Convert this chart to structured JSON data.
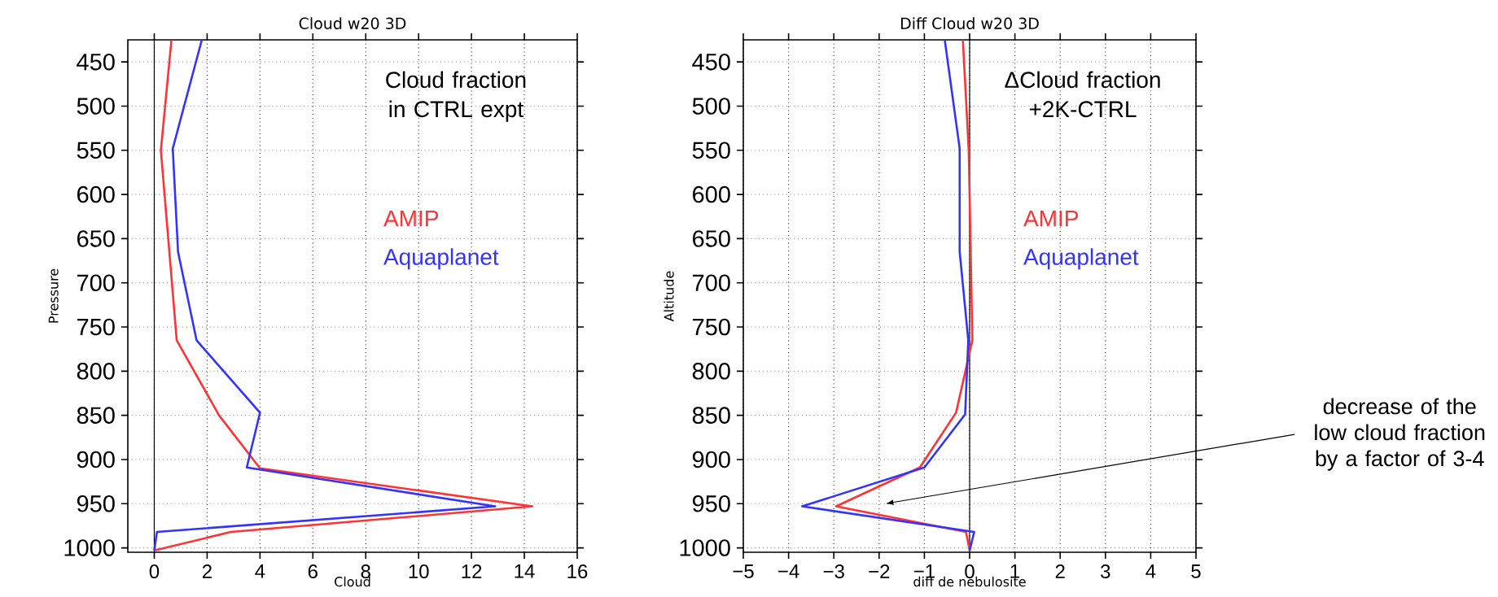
{
  "chart_data": [
    {
      "type": "line",
      "title": "Cloud w20 3D",
      "xlabel": "Cloud",
      "ylabel": "Pressure",
      "xlim": [
        -1,
        16
      ],
      "xticks": [
        0,
        2,
        4,
        6,
        8,
        10,
        12,
        14,
        16
      ],
      "ylim": [
        1005,
        425
      ],
      "yticks": [
        450,
        500,
        550,
        600,
        650,
        700,
        750,
        800,
        850,
        900,
        950,
        1000
      ],
      "grid": true,
      "legend": "right",
      "ref_lines": [
        {
          "axis": "x",
          "value": 0
        }
      ],
      "annotations": [
        "Cloud fraction in CTRL expt"
      ],
      "series": [
        {
          "name": "AMIP",
          "color": "#ff3333",
          "x": [
            0.65,
            0.25,
            0.85,
            2.45,
            4.0,
            14.3,
            2.9,
            0
          ],
          "values": [
            425,
            550,
            765,
            850,
            910,
            953,
            982,
            1003
          ]
        },
        {
          "name": "Aquaplanet",
          "color": "#3333ff",
          "x": [
            1.8,
            0.7,
            0.9,
            1.6,
            4.0,
            3.5,
            12.9,
            0.1,
            0
          ],
          "values": [
            425,
            548,
            665,
            765,
            847,
            909,
            953,
            982,
            1003
          ]
        }
      ]
    },
    {
      "type": "line",
      "title": "Diff Cloud w20 3D",
      "xlabel": "diff de nebulosite",
      "ylabel": "Altitude",
      "xlim": [
        -5,
        5
      ],
      "xticks": [
        {
          "value": -5,
          "label": "−5"
        },
        {
          "value": -4,
          "label": "−4"
        },
        {
          "value": -3,
          "label": "−3"
        },
        {
          "value": -2,
          "label": "−2"
        },
        {
          "value": -1,
          "label": "−1"
        },
        0,
        1,
        2,
        3,
        4,
        5
      ],
      "ylim": [
        1005,
        425
      ],
      "yticks": [
        450,
        500,
        550,
        600,
        650,
        700,
        750,
        800,
        850,
        900,
        950,
        1000
      ],
      "grid": true,
      "legend": "right",
      "ref_lines": [
        {
          "axis": "x",
          "value": 0
        }
      ],
      "annotations": [
        "ΔCloud fraction +2K-CTRL",
        "decrease of the low cloud fraction by a factor of 3-4"
      ],
      "series": [
        {
          "name": "AMIP",
          "color": "#ff3333",
          "x": [
            -0.15,
            -0.02,
            0.06,
            -0.3,
            -1.1,
            -2.95,
            -0.08,
            0
          ],
          "values": [
            425,
            550,
            765,
            847,
            909,
            953,
            982,
            1003
          ]
        },
        {
          "name": "Aquaplanet",
          "color": "#3333ff",
          "x": [
            -0.55,
            -0.22,
            -0.22,
            -0.03,
            -0.1,
            -1.0,
            -3.7,
            0.1,
            0
          ],
          "values": [
            425,
            548,
            665,
            765,
            849,
            909,
            953,
            982,
            1003
          ]
        }
      ]
    }
  ]
}
